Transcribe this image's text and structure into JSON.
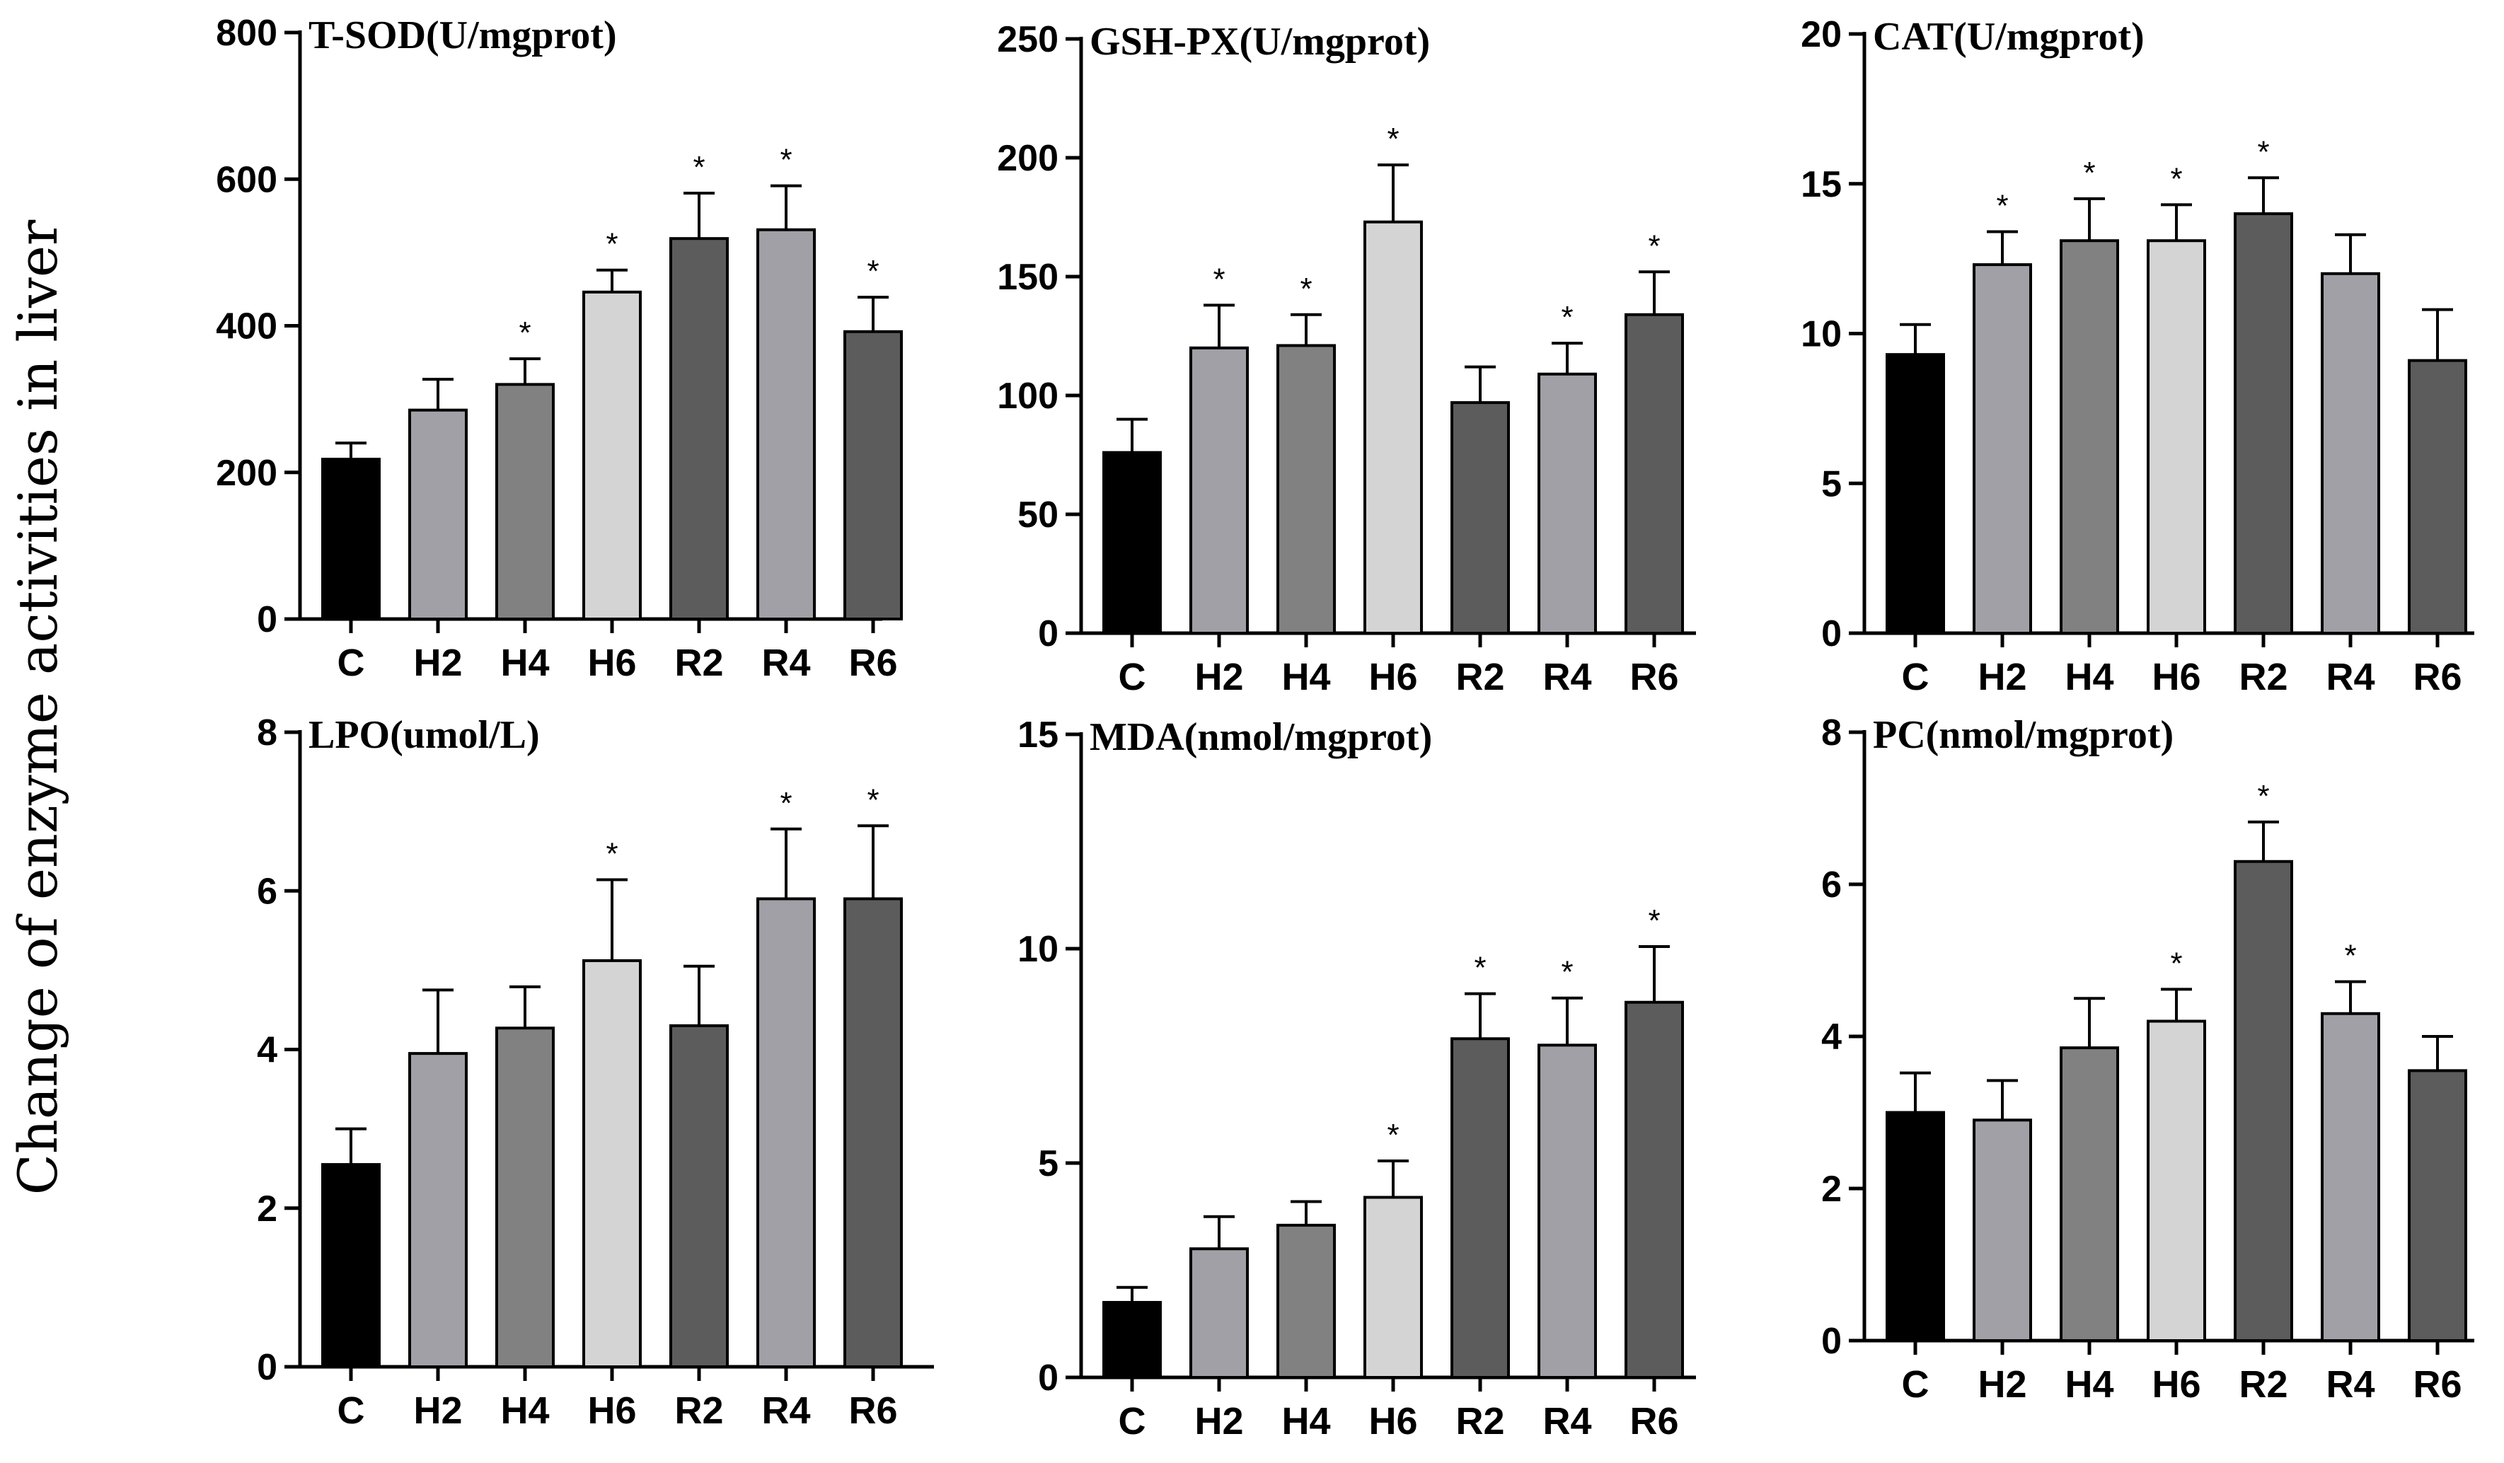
{
  "figure": {
    "ylabel": "Change of enzyme activities in liver"
  },
  "colors": {
    "C": "#000000",
    "H2": "#a0a0a6",
    "H4": "#818181",
    "H6": "#d4d4d4",
    "R2": "#5c5c5c",
    "R4": "#a0a0a6",
    "R6": "#5c5c5c"
  },
  "chart_data": [
    {
      "type": "bar",
      "title": "T-SOD(U/mgprot)",
      "categories": [
        "C",
        "H2",
        "H4",
        "H6",
        "R2",
        "R4",
        "R6"
      ],
      "values": [
        218,
        285,
        320,
        446,
        519,
        531,
        392
      ],
      "errors": [
        22,
        42,
        35,
        30,
        62,
        60,
        47
      ],
      "significant": [
        false,
        false,
        true,
        true,
        true,
        true,
        true
      ],
      "ylim": [
        0,
        800
      ],
      "yticks": [
        0,
        200,
        400,
        600,
        800
      ]
    },
    {
      "type": "bar",
      "title": "GSH-PX(U/mgprot)",
      "categories": [
        "C",
        "H2",
        "H4",
        "H6",
        "R2",
        "R4",
        "R6"
      ],
      "values": [
        76,
        120,
        121,
        173,
        97,
        109,
        134
      ],
      "errors": [
        14,
        18,
        13,
        24,
        15,
        13,
        18
      ],
      "significant": [
        false,
        true,
        true,
        true,
        false,
        true,
        true
      ],
      "ylim": [
        0,
        250
      ],
      "yticks": [
        0,
        50,
        100,
        150,
        200,
        250
      ]
    },
    {
      "type": "bar",
      "title": "CAT(U/mgprot)",
      "categories": [
        "C",
        "H2",
        "H4",
        "H6",
        "R2",
        "R4",
        "R6"
      ],
      "values": [
        9.3,
        12.3,
        13.1,
        13.1,
        14.0,
        12.0,
        9.1
      ],
      "errors": [
        1.0,
        1.1,
        1.4,
        1.2,
        1.2,
        1.3,
        1.7
      ],
      "significant": [
        false,
        true,
        true,
        true,
        true,
        false,
        false
      ],
      "ylim": [
        0,
        20
      ],
      "yticks": [
        0,
        5,
        10,
        15,
        20
      ]
    },
    {
      "type": "bar",
      "title": "LPO(umol/L)",
      "categories": [
        "C",
        "H2",
        "H4",
        "H6",
        "R2",
        "R4",
        "R6"
      ],
      "values": [
        2.55,
        3.95,
        4.27,
        5.12,
        4.3,
        5.9,
        5.9
      ],
      "errors": [
        0.45,
        0.8,
        0.52,
        1.02,
        0.75,
        0.88,
        0.92
      ],
      "significant": [
        false,
        false,
        false,
        true,
        false,
        true,
        true
      ],
      "ylim": [
        0,
        8
      ],
      "yticks": [
        0,
        2,
        4,
        6,
        8
      ]
    },
    {
      "type": "bar",
      "title": "MDA(nmol/mgprot)",
      "categories": [
        "C",
        "H2",
        "H4",
        "H6",
        "R2",
        "R4",
        "R6"
      ],
      "values": [
        1.75,
        3.0,
        3.55,
        4.2,
        7.9,
        7.75,
        8.75
      ],
      "errors": [
        0.35,
        0.75,
        0.55,
        0.85,
        1.05,
        1.1,
        1.3
      ],
      "significant": [
        false,
        false,
        false,
        true,
        true,
        true,
        true
      ],
      "ylim": [
        0,
        15
      ],
      "yticks": [
        0,
        5,
        10,
        15
      ]
    },
    {
      "type": "bar",
      "title": "PC(nmol/mgprot)",
      "categories": [
        "C",
        "H2",
        "H4",
        "H6",
        "R2",
        "R4",
        "R6"
      ],
      "values": [
        3.0,
        2.9,
        3.85,
        4.2,
        6.3,
        4.3,
        3.55
      ],
      "errors": [
        0.52,
        0.52,
        0.65,
        0.42,
        0.52,
        0.42,
        0.45
      ],
      "significant": [
        false,
        false,
        false,
        true,
        true,
        true,
        false
      ],
      "ylim": [
        0,
        8
      ],
      "yticks": [
        0,
        2,
        4,
        6,
        8
      ]
    }
  ]
}
